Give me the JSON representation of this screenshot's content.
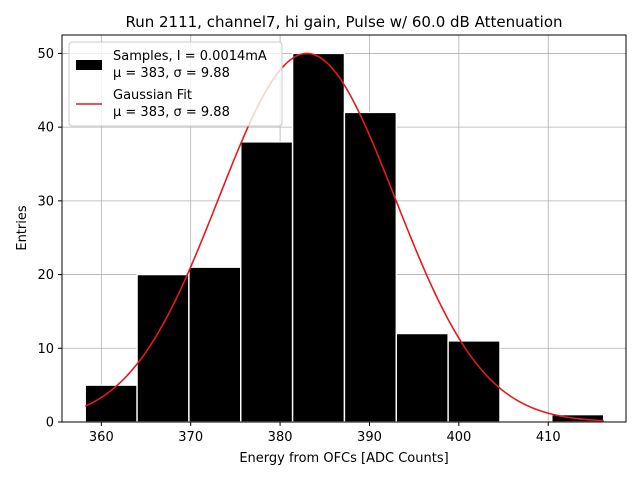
{
  "chart_data": {
    "type": "bar",
    "title": "Run 2111, channel7, hi gain, Pulse w/ 60.0 dB Attenuation",
    "xlabel": "Energy from OFCs [ADC Counts]",
    "ylabel": "Entries",
    "xlim": [
      355.6,
      418.7
    ],
    "ylim": [
      0,
      52.5
    ],
    "xticks": [
      360,
      370,
      380,
      390,
      400,
      410
    ],
    "yticks": [
      0,
      10,
      20,
      30,
      40,
      50
    ],
    "grid": true,
    "legend_position": "top-left",
    "bins": [
      {
        "left": 358.2,
        "right": 364.0,
        "count": 5
      },
      {
        "left": 364.0,
        "right": 369.8,
        "count": 20
      },
      {
        "left": 369.8,
        "right": 375.6,
        "count": 21
      },
      {
        "left": 375.6,
        "right": 381.4,
        "count": 38
      },
      {
        "left": 381.4,
        "right": 387.2,
        "count": 50
      },
      {
        "left": 387.2,
        "right": 393.0,
        "count": 42
      },
      {
        "left": 393.0,
        "right": 398.8,
        "count": 12
      },
      {
        "left": 398.8,
        "right": 404.6,
        "count": 11
      },
      {
        "left": 404.6,
        "right": 410.4,
        "count": 0
      },
      {
        "left": 410.4,
        "right": 416.2,
        "count": 1
      }
    ],
    "series": [
      {
        "name": "Samples, I = 0.0014mA",
        "name_line2": "μ = 383, σ = 9.88",
        "color": "#000000",
        "kind": "histogram"
      },
      {
        "name": "Gaussian Fit",
        "name_line2": "μ = 383, σ = 9.88",
        "color": "#e41a1c",
        "kind": "line",
        "mu": 383,
        "sigma": 9.88,
        "amplitude": 50,
        "x_range": [
          358.2,
          416.2
        ]
      }
    ]
  }
}
